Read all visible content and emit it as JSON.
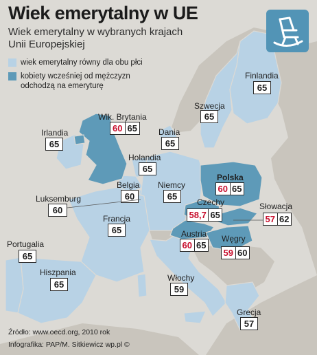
{
  "title": "Wiek emerytalny w UE",
  "subtitle": "Wiek emerytalny w wybranych krajach Unii Europejskiej",
  "legend": {
    "equal": "wiek emerytalny równy dla obu płci",
    "earlier": "kobiety wcześniej od mężczyzn odchodzą na emeryturę"
  },
  "colors": {
    "equal": "#b8d2e5",
    "earlier": "#5e9ab8",
    "other": "#c9c5bd",
    "sea": "#dcdad5",
    "women_number": "#c8102e"
  },
  "icon": "rocking-chair-icon",
  "countries": {
    "finland": {
      "name": "Finlandia",
      "age": "65"
    },
    "sweden": {
      "name": "Szwecja",
      "age": "65"
    },
    "uk": {
      "name": "Wlk. Brytania",
      "women": "60",
      "men": "65"
    },
    "ireland": {
      "name": "Irlandia",
      "age": "65"
    },
    "denmark": {
      "name": "Dania",
      "age": "65"
    },
    "netherlands": {
      "name": "Holandia",
      "age": "65"
    },
    "belgium": {
      "name": "Belgia",
      "age": "60"
    },
    "germany": {
      "name": "Niemcy",
      "age": "65"
    },
    "poland": {
      "name": "Polska",
      "women": "60",
      "men": "65"
    },
    "luxembourg": {
      "name": "Luksemburg",
      "age": "60"
    },
    "czech": {
      "name": "Czechy",
      "women": "58,7",
      "men": "65"
    },
    "slovakia": {
      "name": "Słowacja",
      "women": "57",
      "men": "62"
    },
    "france": {
      "name": "Francja",
      "age": "65"
    },
    "austria": {
      "name": "Austria",
      "women": "60",
      "men": "65"
    },
    "hungary": {
      "name": "Węgry",
      "women": "59",
      "men": "60"
    },
    "portugal": {
      "name": "Portugalia",
      "age": "65"
    },
    "spain": {
      "name": "Hiszpania",
      "age": "65"
    },
    "italy": {
      "name": "Włochy",
      "age": "59"
    },
    "greece": {
      "name": "Grecja",
      "age": "57"
    }
  },
  "footer": {
    "source": "Źródło: www.oecd.org, 2010 rok",
    "credit": "Infografika: PAP/M. Sitkiewicz wp.pl ©"
  }
}
